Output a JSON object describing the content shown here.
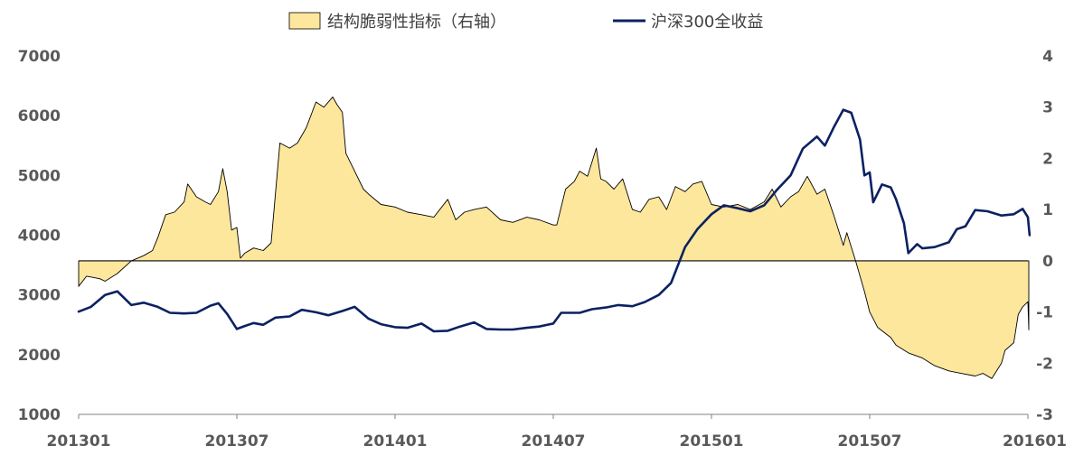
{
  "chart_data": {
    "type": "line+area",
    "title": "",
    "legend": {
      "placement": "top-center",
      "entries": [
        {
          "name": "结构脆弱性指标（右轴）",
          "kind": "area",
          "fill": "#FDE79C",
          "stroke": "#000000"
        },
        {
          "name": "沪深300全收益",
          "kind": "line",
          "stroke": "#0B2161"
        }
      ]
    },
    "left_axis": {
      "min": 1000,
      "max": 7000,
      "ticks": [
        "1000",
        "2000",
        "3000",
        "4000",
        "5000",
        "6000",
        "7000"
      ]
    },
    "right_axis": {
      "min": -3,
      "max": 4,
      "ticks": [
        "-3",
        "-2",
        "-1",
        "0",
        "1",
        "2",
        "3",
        "4"
      ]
    },
    "x_axis": {
      "start": "2013-01",
      "end": "2016-01",
      "ticks": [
        "201301",
        "201307",
        "201401",
        "201407",
        "201501",
        "201507",
        "201601"
      ]
    },
    "series": [
      {
        "name": "结构脆弱性指标（右轴）",
        "axis": "right",
        "points": [
          [
            "2013-01",
            -0.5
          ],
          [
            "2013-01-10",
            -0.3
          ],
          [
            "2013-01-25",
            -0.35
          ],
          [
            "2013-02",
            -0.4
          ],
          [
            "2013-02-15",
            -0.25
          ],
          [
            "2013-03",
            0.0
          ],
          [
            "2013-03-15",
            0.1
          ],
          [
            "2013-03-25",
            0.2
          ],
          [
            "2013-04",
            0.45
          ],
          [
            "2013-04-10",
            0.9
          ],
          [
            "2013-04-20",
            0.95
          ],
          [
            "2013-05",
            1.15
          ],
          [
            "2013-05-05",
            1.5
          ],
          [
            "2013-05-15",
            1.25
          ],
          [
            "2013-05-25",
            1.15
          ],
          [
            "2013-06",
            1.1
          ],
          [
            "2013-06-10",
            1.35
          ],
          [
            "2013-06-15",
            1.8
          ],
          [
            "2013-06-20",
            1.35
          ],
          [
            "2013-06-25",
            0.6
          ],
          [
            "2013-07",
            0.65
          ],
          [
            "2013-07-05",
            0.05
          ],
          [
            "2013-07-10",
            0.15
          ],
          [
            "2013-07-20",
            0.25
          ],
          [
            "2013-08",
            0.2
          ],
          [
            "2013-08-10",
            0.35
          ],
          [
            "2013-08-20",
            2.3
          ],
          [
            "2013-09",
            2.2
          ],
          [
            "2013-09-10",
            2.3
          ],
          [
            "2013-09-20",
            2.6
          ],
          [
            "2013-10",
            3.1
          ],
          [
            "2013-10-10",
            3.0
          ],
          [
            "2013-10-20",
            3.2
          ],
          [
            "2013-10-25",
            3.05
          ],
          [
            "2013-11",
            2.9
          ],
          [
            "2013-11-05",
            2.1
          ],
          [
            "2013-11-15",
            1.75
          ],
          [
            "2013-11-25",
            1.4
          ],
          [
            "2013-12",
            1.3
          ],
          [
            "2013-12-15",
            1.1
          ],
          [
            "2014-01",
            1.05
          ],
          [
            "2014-01-15",
            0.95
          ],
          [
            "2014-02",
            0.9
          ],
          [
            "2014-02-15",
            0.85
          ],
          [
            "2014-03",
            1.2
          ],
          [
            "2014-03-10",
            0.8
          ],
          [
            "2014-03-20",
            0.95
          ],
          [
            "2014-04",
            1.0
          ],
          [
            "2014-04-15",
            1.05
          ],
          [
            "2014-05",
            0.8
          ],
          [
            "2014-05-15",
            0.75
          ],
          [
            "2014-06",
            0.85
          ],
          [
            "2014-06-15",
            0.8
          ],
          [
            "2014-07",
            0.7
          ],
          [
            "2014-07-05",
            0.7
          ],
          [
            "2014-07-15",
            1.4
          ],
          [
            "2014-07-25",
            1.55
          ],
          [
            "2014-08",
            1.75
          ],
          [
            "2014-08-10",
            1.65
          ],
          [
            "2014-08-20",
            2.2
          ],
          [
            "2014-08-25",
            1.6
          ],
          [
            "2014-09",
            1.55
          ],
          [
            "2014-09-10",
            1.4
          ],
          [
            "2014-09-20",
            1.6
          ],
          [
            "2014-10",
            1.0
          ],
          [
            "2014-10-10",
            0.95
          ],
          [
            "2014-10-20",
            1.2
          ],
          [
            "2014-11",
            1.25
          ],
          [
            "2014-11-10",
            1.0
          ],
          [
            "2014-11-20",
            1.45
          ],
          [
            "2014-12",
            1.35
          ],
          [
            "2014-12-10",
            1.5
          ],
          [
            "2014-12-20",
            1.55
          ],
          [
            "2015-01",
            1.1
          ],
          [
            "2015-01-15",
            1.05
          ],
          [
            "2015-02",
            1.1
          ],
          [
            "2015-02-15",
            1.0
          ],
          [
            "2015-03",
            1.15
          ],
          [
            "2015-03-10",
            1.4
          ],
          [
            "2015-03-20",
            1.05
          ],
          [
            "2015-04",
            1.25
          ],
          [
            "2015-04-10",
            1.35
          ],
          [
            "2015-04-20",
            1.65
          ],
          [
            "2015-05",
            1.3
          ],
          [
            "2015-05-10",
            1.4
          ],
          [
            "2015-05-20",
            0.9
          ],
          [
            "2015-06",
            0.3
          ],
          [
            "2015-06-05",
            0.55
          ],
          [
            "2015-06-15",
            0.0
          ],
          [
            "2015-06-25",
            -0.6
          ],
          [
            "2015-07",
            -1.0
          ],
          [
            "2015-07-10",
            -1.3
          ],
          [
            "2015-07-25",
            -1.5
          ],
          [
            "2015-08",
            -1.65
          ],
          [
            "2015-08-15",
            -1.8
          ],
          [
            "2015-09",
            -1.9
          ],
          [
            "2015-09-15",
            -2.05
          ],
          [
            "2015-10",
            -2.15
          ],
          [
            "2015-10-15",
            -2.2
          ],
          [
            "2015-11",
            -2.25
          ],
          [
            "2015-11-10",
            -2.2
          ],
          [
            "2015-11-20",
            -2.3
          ],
          [
            "2015-12",
            -2.0
          ],
          [
            "2015-12-05",
            -1.75
          ],
          [
            "2015-12-15",
            -1.6
          ],
          [
            "2015-12-20",
            -1.05
          ],
          [
            "2015-12-25",
            -0.9
          ],
          [
            "2016-01",
            -0.8
          ],
          [
            "2016-01-02",
            -1.35
          ]
        ]
      },
      {
        "name": "沪深300全收益",
        "axis": "left",
        "points": [
          [
            "2013-01",
            2720
          ],
          [
            "2013-01-15",
            2800
          ],
          [
            "2013-02",
            3000
          ],
          [
            "2013-02-15",
            3060
          ],
          [
            "2013-03",
            2830
          ],
          [
            "2013-03-15",
            2870
          ],
          [
            "2013-04",
            2800
          ],
          [
            "2013-04-15",
            2700
          ],
          [
            "2013-05",
            2690
          ],
          [
            "2013-05-15",
            2700
          ],
          [
            "2013-06",
            2820
          ],
          [
            "2013-06-10",
            2860
          ],
          [
            "2013-06-20",
            2680
          ],
          [
            "2013-07",
            2430
          ],
          [
            "2013-07-10",
            2480
          ],
          [
            "2013-07-20",
            2530
          ],
          [
            "2013-08",
            2500
          ],
          [
            "2013-08-15",
            2620
          ],
          [
            "2013-09",
            2640
          ],
          [
            "2013-09-15",
            2750
          ],
          [
            "2013-10",
            2710
          ],
          [
            "2013-10-15",
            2660
          ],
          [
            "2013-11",
            2730
          ],
          [
            "2013-11-15",
            2800
          ],
          [
            "2013-12",
            2600
          ],
          [
            "2013-12-15",
            2510
          ],
          [
            "2014-01",
            2460
          ],
          [
            "2014-01-15",
            2450
          ],
          [
            "2014-02",
            2520
          ],
          [
            "2014-02-15",
            2390
          ],
          [
            "2014-03",
            2400
          ],
          [
            "2014-03-15",
            2470
          ],
          [
            "2014-04",
            2540
          ],
          [
            "2014-04-15",
            2430
          ],
          [
            "2014-05",
            2420
          ],
          [
            "2014-05-15",
            2420
          ],
          [
            "2014-06",
            2450
          ],
          [
            "2014-06-15",
            2470
          ],
          [
            "2014-07",
            2520
          ],
          [
            "2014-07-10",
            2700
          ],
          [
            "2014-08",
            2700
          ],
          [
            "2014-08-15",
            2760
          ],
          [
            "2014-09",
            2790
          ],
          [
            "2014-09-15",
            2830
          ],
          [
            "2014-10",
            2810
          ],
          [
            "2014-10-15",
            2880
          ],
          [
            "2014-11",
            3000
          ],
          [
            "2014-11-15",
            3200
          ],
          [
            "2014-12",
            3800
          ],
          [
            "2014-12-15",
            4100
          ],
          [
            "2015-01",
            4350
          ],
          [
            "2015-01-15",
            4500
          ],
          [
            "2015-02",
            4450
          ],
          [
            "2015-02-15",
            4400
          ],
          [
            "2015-03",
            4500
          ],
          [
            "2015-03-15",
            4750
          ],
          [
            "2015-04",
            5000
          ],
          [
            "2015-04-15",
            5450
          ],
          [
            "2015-05",
            5650
          ],
          [
            "2015-05-10",
            5500
          ],
          [
            "2015-05-20",
            5800
          ],
          [
            "2015-06",
            6100
          ],
          [
            "2015-06-10",
            6050
          ],
          [
            "2015-06-20",
            5600
          ],
          [
            "2015-06-25",
            5000
          ],
          [
            "2015-07",
            5050
          ],
          [
            "2015-07-05",
            4550
          ],
          [
            "2015-07-15",
            4850
          ],
          [
            "2015-07-25",
            4800
          ],
          [
            "2015-08",
            4600
          ],
          [
            "2015-08-10",
            4200
          ],
          [
            "2015-08-15",
            3700
          ],
          [
            "2015-08-25",
            3850
          ],
          [
            "2015-09",
            3780
          ],
          [
            "2015-09-15",
            3800
          ],
          [
            "2015-10",
            3880
          ],
          [
            "2015-10-10",
            4100
          ],
          [
            "2015-10-20",
            4150
          ],
          [
            "2015-11",
            4420
          ],
          [
            "2015-11-15",
            4400
          ],
          [
            "2015-12",
            4330
          ],
          [
            "2015-12-15",
            4350
          ],
          [
            "2015-12-25",
            4440
          ],
          [
            "2016-01",
            4300
          ],
          [
            "2016-01-03",
            4000
          ]
        ]
      }
    ]
  }
}
